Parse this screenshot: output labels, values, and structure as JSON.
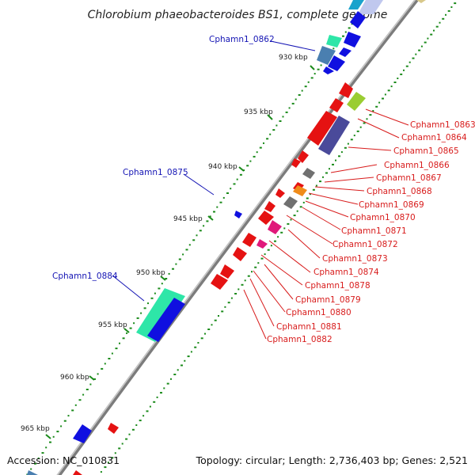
{
  "title": "Chlorobium phaeobacteroides BS1, complete genome",
  "footer": {
    "accession": "Accession: NC_010831",
    "summary": "Topology: circular; Length: 2,736,403 bp; Genes: 2,521"
  },
  "ticks": [
    "930 kbp",
    "935 kbp",
    "940 kbp",
    "945 kbp",
    "950 kbp",
    "955 kbp",
    "960 kbp",
    "965 kbp"
  ],
  "labels_left": [
    "Cphamn1_0862",
    "Cphamn1_0875",
    "Cphamn1_0884"
  ],
  "labels_right": [
    "Cphamn1_0863",
    "Cphamn1_0864",
    "Cphamn1_0865",
    "Cphamn1_0866",
    "Cphamn1_0867",
    "Cphamn1_0868",
    "Cphamn1_0869",
    "Cphamn1_0870",
    "Cphamn1_0871",
    "Cphamn1_0872",
    "Cphamn1_0873",
    "Cphamn1_0874",
    "Cphamn1_0878",
    "Cphamn1_0879",
    "Cphamn1_0880",
    "Cphamn1_0881",
    "Cphamn1_0882"
  ],
  "colors": {
    "backbone": "#8c8c8c",
    "forward_strand": "#1010e0",
    "reverse_strand": "#e51212",
    "dotted_track": "#1a8a1a",
    "left_label": "#1414b4",
    "right_label": "#d81c1c",
    "teal_gene": "#2ee6a8",
    "steelblue_gene": "#4a7fb0",
    "olive_gene": "#9acd32",
    "slate_gene": "#4a4a9a",
    "pink_gene": "#e0197a",
    "orange_gene": "#f08c1a",
    "gray_gene": "#707070"
  }
}
